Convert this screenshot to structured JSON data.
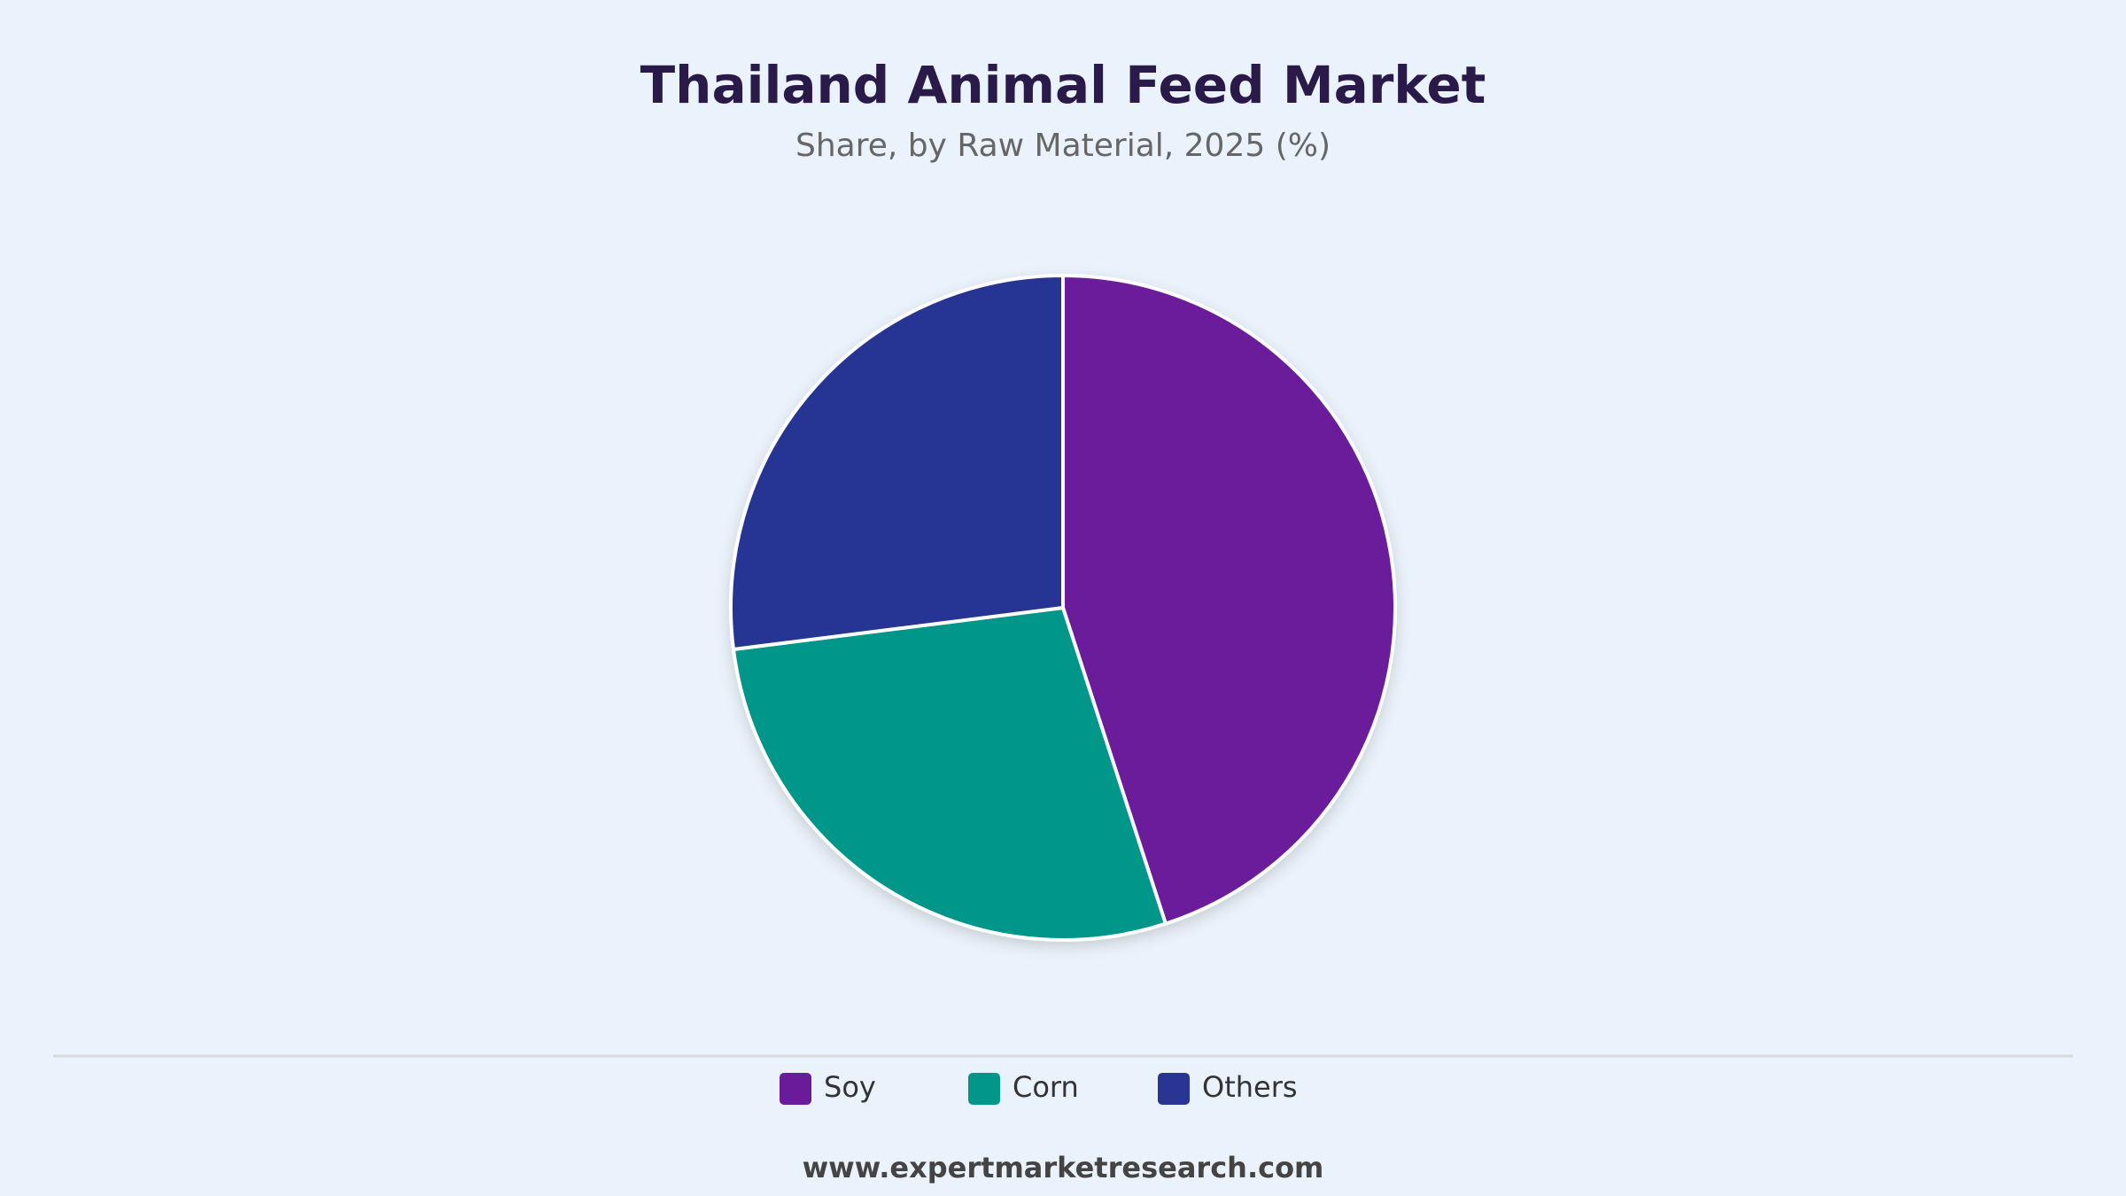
{
  "chart_data": {
    "type": "pie",
    "title": "Thailand Animal Feed Market",
    "subtitle": "Share, by Raw Material, 2025 (%)",
    "categories": [
      "Soy",
      "Corn",
      "Others"
    ],
    "values": [
      45,
      28,
      27
    ],
    "colors": [
      "#6a1b9a",
      "#00968a",
      "#283593"
    ],
    "legend": "bottom"
  },
  "footer": "www.expertmarketresearch.com"
}
